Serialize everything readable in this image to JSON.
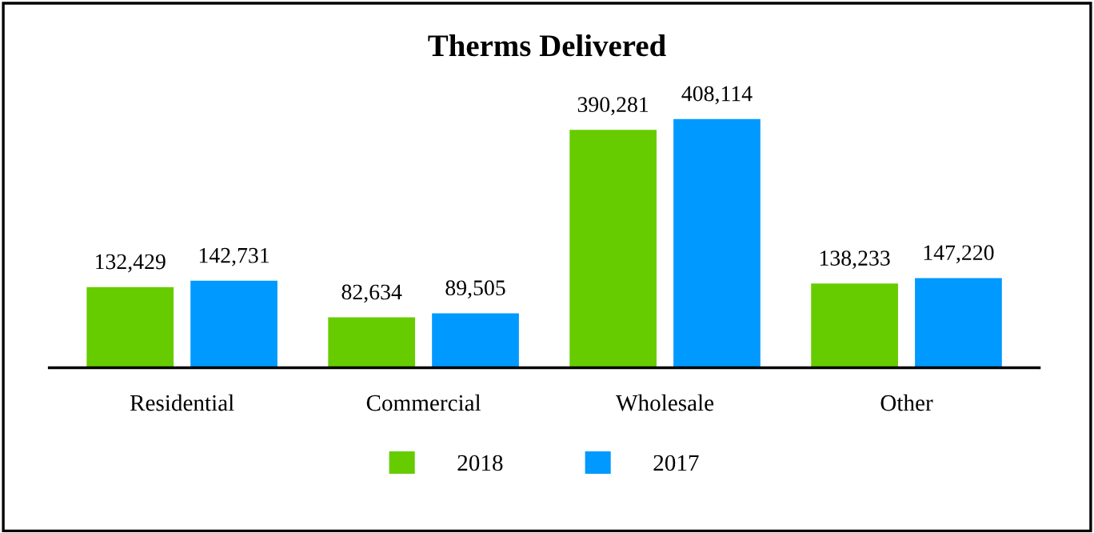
{
  "chart_data": {
    "type": "bar",
    "title": "Therms Delivered",
    "categories": [
      "Residential",
      "Commercial",
      "Wholesale",
      "Other"
    ],
    "series": [
      {
        "name": "2018",
        "color": "#66cc00",
        "values": [
          132429,
          82634,
          390281,
          138233
        ],
        "value_labels": [
          "132,429",
          "82,634",
          "390,281",
          "138,233"
        ]
      },
      {
        "name": "2017",
        "color": "#0099ff",
        "values": [
          142731,
          89505,
          408114,
          147220
        ],
        "value_labels": [
          "142,731",
          "89,505",
          "408,114",
          "147,220"
        ]
      }
    ],
    "legend": "bottom",
    "tick_labels": "x"
  }
}
